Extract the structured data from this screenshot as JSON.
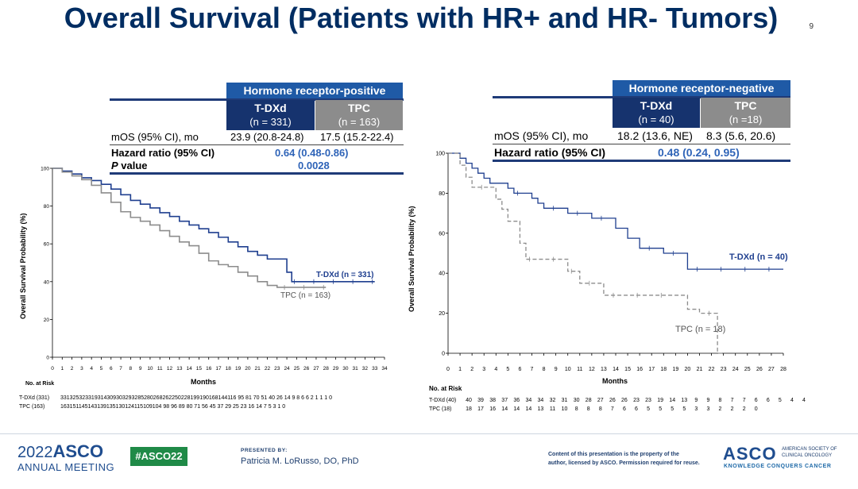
{
  "slide": {
    "title": "Overall Survival (Patients with HR+ and HR- Tumors)",
    "page_number": "9"
  },
  "colors": {
    "title": "#002d62",
    "tdxd": "#1f3f8f",
    "tpc": "#8c8c8c",
    "header": "#1f5aa6",
    "accent_green": "#1f8a47"
  },
  "hr_positive": {
    "header": "Hormone receptor-positive",
    "tdxd_label": "T-DXd",
    "tdxd_n": "(n = 331)",
    "tpc_label": "TPC",
    "tpc_n": "(n = 163)",
    "mos_label": "mOS (95% CI), mo",
    "mos_tdxd": "23.9 (20.8-24.8)",
    "mos_tpc": "17.5 (15.2-22.4)",
    "hr_label": "Hazard ratio (95% CI)",
    "hr_value": "0.64 (0.48-0.86)",
    "p_label_italic": "P",
    "p_label_rest": " value",
    "p_value": "0.0028",
    "y_axis_title": "Overall Survival Probability (%)",
    "x_axis_title": "Months",
    "curve_label_tdxd": "T-DXd (n = 331)",
    "curve_label_tpc": "TPC (n = 163)",
    "risk_title": "No. at Risk",
    "risk_tdxd_label": "T-DXd (331)",
    "risk_tpc_label": "TPC (163)",
    "risk_tdxd_values": "331325323319314309303293285280268262250228199190168144116 95 81 70 51 40 26 14 9 8 6 6 2 1 1 1 0",
    "risk_tpc_values": "163151145143139135130124115109104 98 96 89 80 71 56 45 37 29 25 23 16 14 7 5 3 1 0"
  },
  "hr_negative": {
    "header": "Hormone receptor-negative",
    "tdxd_label": "T-DXd",
    "tdxd_n": "(n = 40)",
    "tpc_label": "TPC",
    "tpc_n": "(n =18)",
    "mos_label": "mOS (95% CI), mo",
    "mos_tdxd": "18.2 (13.6, NE)",
    "mos_tpc": "8.3 (5.6, 20.6)",
    "hr_label": "Hazard ratio (95% CI)",
    "hr_value": "0.48 (0.24, 0.95)",
    "y_axis_title": "Overall Survival Probability (%)",
    "x_axis_title": "Months",
    "curve_label_tdxd": "T-DXd (n = 40)",
    "curve_label_tpc": "TPC (n = 18)",
    "risk_title": "No. at Risk",
    "risk_tdxd_label": "T-DXd (40)",
    "risk_tpc_label": "TPC (18)",
    "risk_tdxd_values": [
      "40",
      "39",
      "38",
      "37",
      "36",
      "34",
      "34",
      "32",
      "31",
      "30",
      "28",
      "27",
      "26",
      "26",
      "23",
      "23",
      "19",
      "14",
      "13",
      "9",
      "9",
      "8",
      "7",
      "7",
      "6",
      "6",
      "5",
      "4",
      "4"
    ],
    "risk_tpc_values": [
      "18",
      "17",
      "16",
      "14",
      "14",
      "14",
      "13",
      "11",
      "10",
      "8",
      "8",
      "8",
      "7",
      "6",
      "6",
      "5",
      "5",
      "5",
      "5",
      "3",
      "3",
      "2",
      "2",
      "2",
      "0"
    ]
  },
  "footer": {
    "meeting_year": "2022",
    "meeting_org": "ASCO",
    "meeting_name": "ANNUAL MEETING",
    "hashtag": "#ASCO22",
    "presented_by_label": "PRESENTED BY:",
    "presenter": "Patricia M. LoRusso, DO, PhD",
    "disclaimer_line1": "Content of this presentation is the property of the",
    "disclaimer_line2": "author, licensed by ASCO. Permission required for reuse.",
    "logo_text": "ASCO",
    "society_line1": "AMERICAN SOCIETY OF",
    "society_line2": "CLINICAL ONCOLOGY",
    "tagline": "KNOWLEDGE CONQUERS CANCER"
  },
  "chart_data": [
    {
      "type": "line",
      "title": "Hormone receptor-positive",
      "xlabel": "Months",
      "ylabel": "Overall Survival Probability (%)",
      "xlim": [
        0,
        34
      ],
      "ylim": [
        0,
        100
      ],
      "x_ticks": [
        0,
        1,
        2,
        3,
        4,
        5,
        6,
        7,
        8,
        9,
        10,
        11,
        12,
        13,
        14,
        15,
        16,
        17,
        18,
        19,
        20,
        21,
        22,
        23,
        24,
        25,
        26,
        27,
        28,
        29,
        30,
        31,
        32,
        33,
        34
      ],
      "y_ticks": [
        0,
        20,
        40,
        60,
        80,
        100
      ],
      "series": [
        {
          "name": "T-DXd (n = 331)",
          "color": "#1f3f8f",
          "dash": false,
          "x": [
            0,
            1,
            2,
            3,
            4,
            5,
            6,
            7,
            8,
            9,
            10,
            11,
            12,
            13,
            14,
            15,
            16,
            17,
            18,
            19,
            20,
            21,
            22,
            23,
            24,
            24.5,
            25,
            26,
            27,
            28,
            29,
            30,
            31,
            32,
            33
          ],
          "y": [
            100,
            98.5,
            97,
            95,
            93.5,
            91.5,
            89,
            86,
            83,
            81,
            79,
            76.5,
            74.5,
            72,
            70,
            68,
            66,
            63.5,
            61,
            58.5,
            56,
            54,
            52,
            52,
            45,
            40,
            40,
            40,
            40,
            40,
            40,
            40,
            40,
            40,
            40
          ]
        },
        {
          "name": "TPC (n = 163)",
          "color": "#8c8c8c",
          "dash": false,
          "x": [
            0,
            1,
            2,
            3,
            4,
            5,
            6,
            7,
            8,
            9,
            10,
            11,
            12,
            13,
            14,
            15,
            16,
            17,
            18,
            19,
            20,
            21,
            22,
            23,
            24,
            25,
            26,
            27,
            28
          ],
          "y": [
            100,
            98,
            96,
            94,
            91,
            87,
            82,
            77,
            74,
            72,
            70,
            67,
            64,
            61,
            59,
            55,
            51,
            49,
            48,
            45,
            43,
            40,
            38,
            37,
            37,
            37,
            37,
            37,
            37
          ]
        }
      ]
    },
    {
      "type": "line",
      "title": "Hormone receptor-negative",
      "xlabel": "Months",
      "ylabel": "Overall Survival Probability (%)",
      "xlim": [
        0,
        28
      ],
      "ylim": [
        0,
        100
      ],
      "x_ticks": [
        0,
        1,
        2,
        3,
        4,
        5,
        6,
        7,
        8,
        9,
        10,
        11,
        12,
        13,
        14,
        15,
        16,
        17,
        18,
        19,
        20,
        21,
        22,
        23,
        24,
        25,
        26,
        27,
        28
      ],
      "y_ticks": [
        0,
        20,
        40,
        60,
        80,
        100
      ],
      "series": [
        {
          "name": "T-DXd (n = 40)",
          "color": "#1f3f8f",
          "dash": false,
          "x": [
            0,
            1,
            1.5,
            2,
            2.5,
            3,
            3.5,
            4,
            5,
            5.5,
            6,
            7,
            7.5,
            8,
            9,
            10,
            11,
            12,
            13,
            14,
            15,
            16,
            17,
            18,
            19,
            20,
            21,
            22,
            23,
            24,
            25,
            26,
            27,
            28
          ],
          "y": [
            100,
            97.5,
            95,
            92.5,
            90,
            87.5,
            85,
            85,
            82.5,
            80,
            80,
            77.5,
            75,
            72.5,
            72.5,
            70,
            70,
            67.5,
            67.5,
            62.5,
            57.5,
            52.5,
            52.5,
            50,
            50,
            42,
            42,
            42,
            42,
            42,
            42,
            42,
            42,
            42
          ]
        },
        {
          "name": "TPC (n = 18)",
          "color": "#8c8c8c",
          "dash": true,
          "x": [
            0,
            1,
            1.5,
            2,
            3,
            4,
            4.5,
            5,
            6,
            6.5,
            7,
            8,
            9,
            10,
            10.5,
            11,
            12,
            13,
            14,
            15,
            16,
            17,
            18,
            19,
            20,
            21,
            22,
            22.5,
            23
          ],
          "y": [
            100,
            94,
            88,
            83,
            83,
            77,
            72,
            66,
            55,
            47,
            47,
            47,
            47,
            41,
            41,
            35,
            35,
            29,
            29,
            29,
            29,
            29,
            29,
            29,
            22,
            20,
            20,
            0,
            0
          ]
        }
      ]
    }
  ]
}
